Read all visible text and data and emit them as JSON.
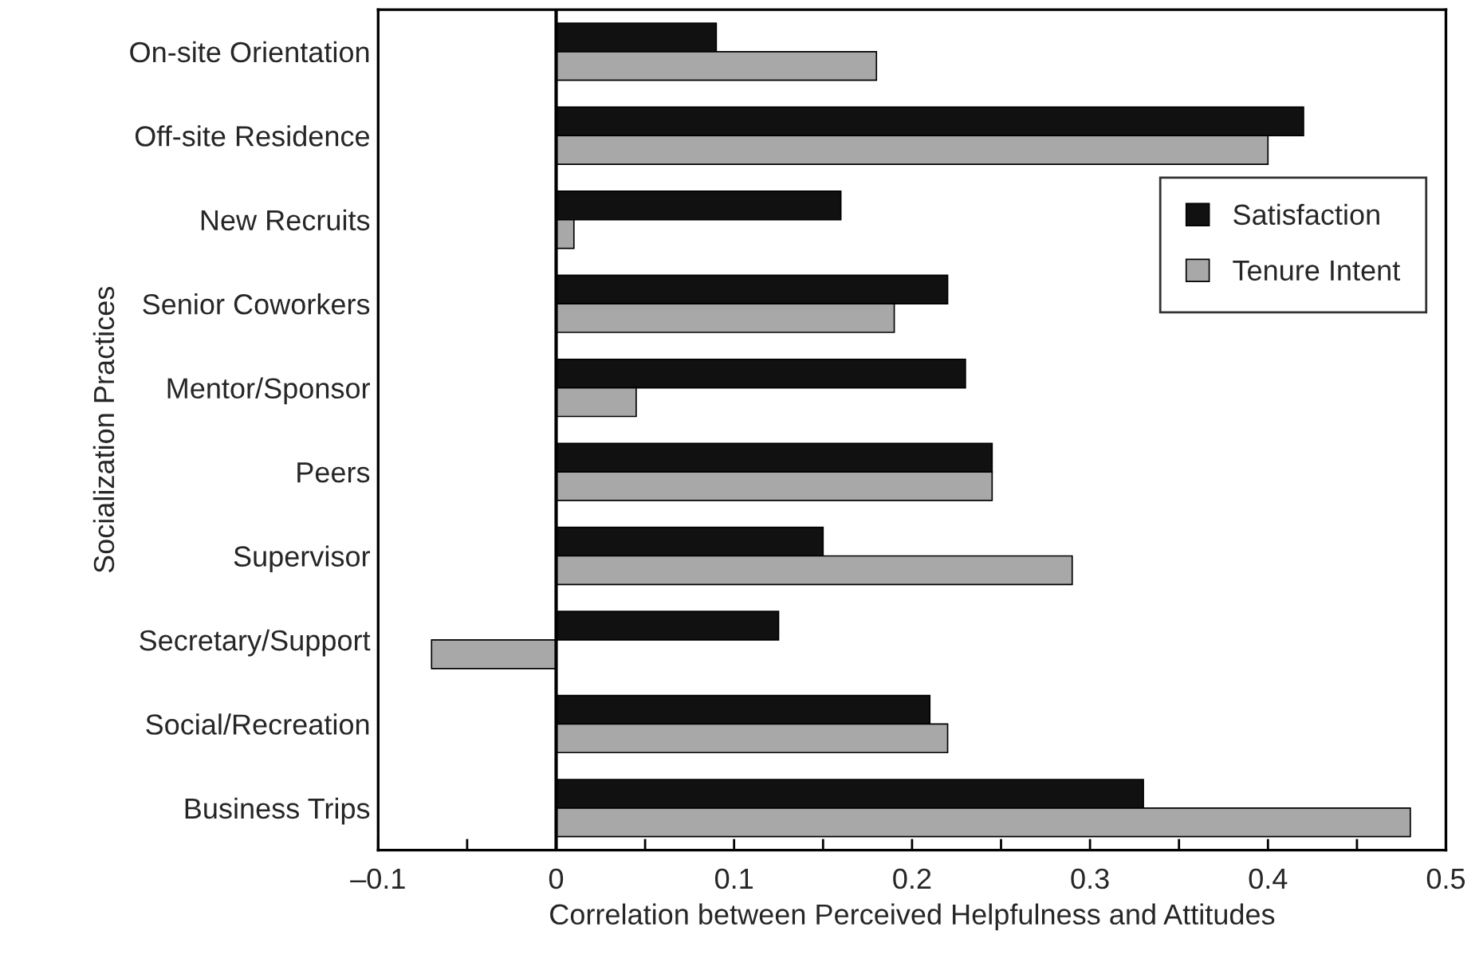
{
  "chart_data": {
    "type": "bar",
    "orientation": "horizontal",
    "xlabel": "Correlation between Perceived Helpfulness and Attitudes",
    "ylabel": "Socialization Practices",
    "categories": [
      "On-site Orientation",
      "Off-site Residence",
      "New Recruits",
      "Senior Coworkers",
      "Mentor/Sponsor",
      "Peers",
      "Supervisor",
      "Secretary/Support",
      "Social/Recreation",
      "Business Trips"
    ],
    "series": [
      {
        "name": "Satisfaction",
        "color": "#111111",
        "values": [
          0.09,
          0.42,
          0.16,
          0.22,
          0.23,
          0.245,
          0.15,
          0.125,
          0.21,
          0.33
        ]
      },
      {
        "name": "Tenure Intent",
        "color": "#a8a8a8",
        "values": [
          0.18,
          0.4,
          0.01,
          0.19,
          0.045,
          0.245,
          0.29,
          -0.07,
          0.22,
          0.48
        ]
      }
    ],
    "xlim": [
      -0.1,
      0.5
    ],
    "xticks": [
      {
        "value": -0.1,
        "label": "–0.1"
      },
      {
        "value": -0.05,
        "label": null
      },
      0,
      {
        "value": 0.05,
        "label": null
      },
      0.1,
      {
        "value": 0.15,
        "label": null
      },
      0.2,
      {
        "value": 0.25,
        "label": null
      },
      0.3,
      {
        "value": 0.35,
        "label": null
      },
      0.4,
      {
        "value": 0.45,
        "label": null
      },
      0.5
    ],
    "ref_lines": [
      {
        "axis": "x",
        "value": 0,
        "color": "#000000"
      }
    ],
    "legend": "right",
    "grid": false
  }
}
